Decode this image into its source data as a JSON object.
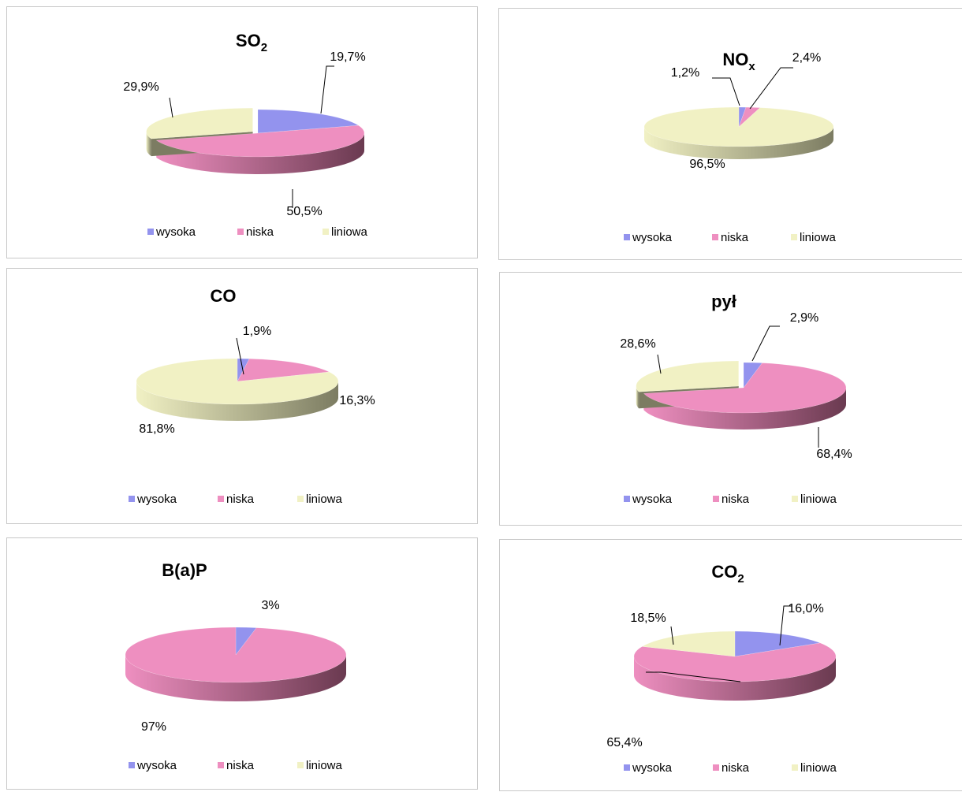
{
  "legend": [
    "wysoka",
    "niska",
    "liniowa"
  ],
  "colors": {
    "wysoka": {
      "top": "#9393ee",
      "side": "#54548f"
    },
    "niska": {
      "top": "#ee8fc0",
      "side": "#6a3a50"
    },
    "liniowa": {
      "top": "#f1f1c4",
      "side": "#7c7c62"
    }
  },
  "chart_data": [
    {
      "type": "pie",
      "title": "SO2",
      "title_main": "SO",
      "title_sub": "2",
      "categories": [
        "wysoka",
        "niska",
        "liniowa"
      ],
      "values": [
        19.7,
        50.5,
        29.9
      ],
      "labels": [
        "19,7%",
        "50,5%",
        "29,9%"
      ],
      "exploded": "liniowa",
      "legend_position": "bottom"
    },
    {
      "type": "pie",
      "title": "NOx",
      "title_main": "NO",
      "title_sub": "x",
      "categories": [
        "wysoka",
        "niska",
        "liniowa"
      ],
      "values": [
        1.2,
        2.4,
        96.5
      ],
      "labels": [
        "1,2%",
        "2,4%",
        "96,5%"
      ],
      "legend_position": "bottom"
    },
    {
      "type": "pie",
      "title": "CO",
      "title_main": "CO",
      "title_sub": "",
      "categories": [
        "wysoka",
        "niska",
        "liniowa"
      ],
      "values": [
        1.9,
        16.3,
        81.8
      ],
      "labels": [
        "1,9%",
        "16,3%",
        "81,8%"
      ],
      "legend_position": "bottom"
    },
    {
      "type": "pie",
      "title": "pył",
      "title_main": "pył",
      "title_sub": "",
      "categories": [
        "wysoka",
        "niska",
        "liniowa"
      ],
      "values": [
        2.9,
        68.4,
        28.6
      ],
      "labels": [
        "2,9%",
        "68,4%",
        "28,6%"
      ],
      "exploded": "liniowa",
      "legend_position": "bottom"
    },
    {
      "type": "pie",
      "title": "B(a)P",
      "title_main": "B(a)P",
      "title_sub": "",
      "categories": [
        "wysoka",
        "niska",
        "liniowa"
      ],
      "values": [
        3,
        97,
        0
      ],
      "labels": [
        "3%",
        "97%",
        ""
      ],
      "legend_position": "bottom"
    },
    {
      "type": "pie",
      "title": "CO2",
      "title_main": "CO",
      "title_sub": "2",
      "categories": [
        "wysoka",
        "niska",
        "liniowa"
      ],
      "values": [
        16.0,
        65.4,
        18.5
      ],
      "labels": [
        "16,0%",
        "65,4%",
        "18,5%"
      ],
      "legend_position": "bottom"
    }
  ]
}
